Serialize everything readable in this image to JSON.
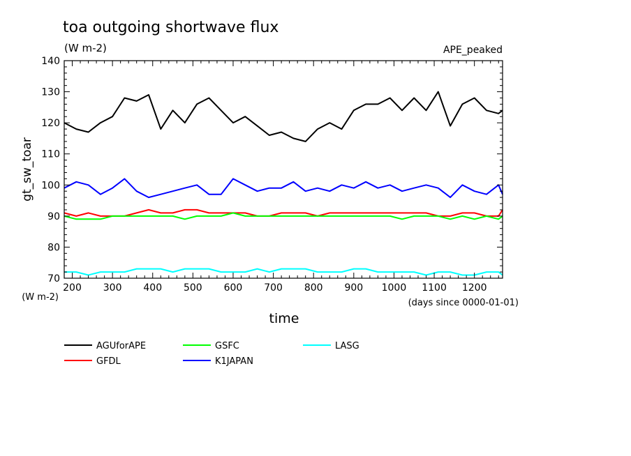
{
  "chart_data": {
    "type": "line",
    "title": "toa outgoing shortwave flux",
    "subtitle": "(W m-2)",
    "tag": "APE_peaked",
    "xlabel": "time",
    "xunit": "(days since 0000-01-01)",
    "ylabel": "gt_sw_toar",
    "yunit": "(W m-2)",
    "xlim": [
      180,
      1270
    ],
    "ylim": [
      70,
      140
    ],
    "xticks": [
      200,
      300,
      400,
      500,
      600,
      700,
      800,
      900,
      1000,
      1100,
      1200
    ],
    "yticks": [
      70,
      80,
      90,
      100,
      110,
      120,
      130,
      140
    ],
    "grid": false,
    "legend_position": "bottom",
    "x": [
      180,
      210,
      240,
      270,
      300,
      330,
      360,
      390,
      420,
      450,
      480,
      510,
      540,
      570,
      600,
      630,
      660,
      690,
      720,
      750,
      780,
      810,
      840,
      870,
      900,
      930,
      960,
      990,
      1020,
      1050,
      1080,
      1110,
      1140,
      1170,
      1200,
      1230,
      1260,
      1270
    ],
    "series": [
      {
        "name": "AGUforAPE",
        "color": "#000000",
        "values": [
          120,
          118,
          117,
          120,
          122,
          128,
          127,
          129,
          118,
          124,
          120,
          126,
          128,
          124,
          120,
          122,
          119,
          116,
          117,
          115,
          114,
          118,
          120,
          118,
          124,
          126,
          126,
          128,
          124,
          128,
          124,
          130,
          119,
          126,
          128,
          124,
          123,
          124
        ]
      },
      {
        "name": "GFDL",
        "color": "#ff0000",
        "values": [
          91,
          90,
          91,
          90,
          90,
          90,
          91,
          92,
          91,
          91,
          92,
          92,
          91,
          91,
          91,
          91,
          90,
          90,
          91,
          91,
          91,
          90,
          91,
          91,
          91,
          91,
          91,
          91,
          91,
          91,
          91,
          90,
          90,
          91,
          91,
          90,
          90,
          92
        ]
      },
      {
        "name": "GSFC",
        "color": "#00ff00",
        "values": [
          90,
          89,
          89,
          89,
          90,
          90,
          90,
          90,
          90,
          90,
          89,
          90,
          90,
          90,
          91,
          90,
          90,
          90,
          90,
          90,
          90,
          90,
          90,
          90,
          90,
          90,
          90,
          90,
          89,
          90,
          90,
          90,
          89,
          90,
          89,
          90,
          89,
          90
        ]
      },
      {
        "name": "K1JAPAN",
        "color": "#0000ff",
        "values": [
          99,
          101,
          100,
          97,
          99,
          102,
          98,
          96,
          97,
          98,
          99,
          100,
          97,
          97,
          102,
          100,
          98,
          99,
          99,
          101,
          98,
          99,
          98,
          100,
          99,
          101,
          99,
          100,
          98,
          99,
          100,
          99,
          96,
          100,
          98,
          97,
          100,
          97
        ]
      },
      {
        "name": "LASG",
        "color": "#00ffff",
        "values": [
          72,
          72,
          71,
          72,
          72,
          72,
          73,
          73,
          73,
          72,
          73,
          73,
          73,
          72,
          72,
          72,
          73,
          72,
          73,
          73,
          73,
          72,
          72,
          72,
          73,
          73,
          72,
          72,
          72,
          72,
          71,
          72,
          72,
          71,
          71,
          72,
          72,
          71
        ]
      }
    ]
  }
}
